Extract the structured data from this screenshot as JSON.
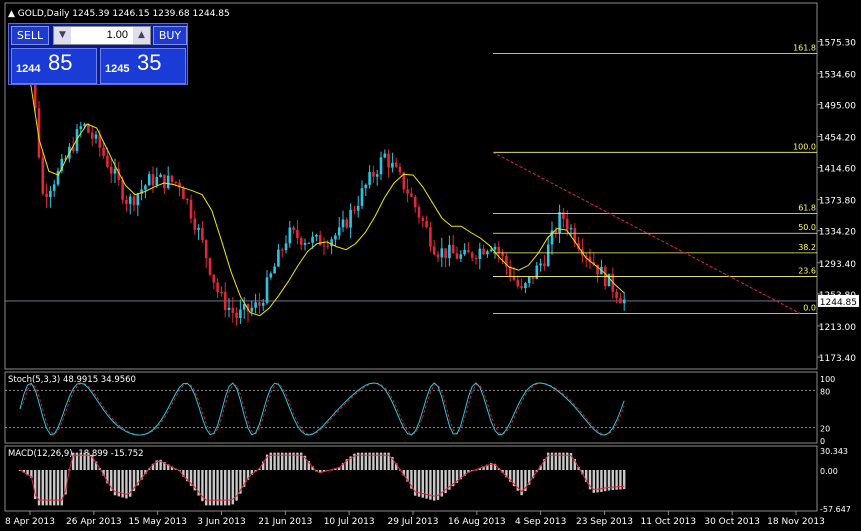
{
  "header": {
    "symbol": "GOLD,Daily",
    "ohlc": "1245.39 1246.15 1239.68 1244.85"
  },
  "trade_panel": {
    "sell_label": "SELL",
    "buy_label": "BUY",
    "lot_value": "1.00",
    "sell_price_small": "1244",
    "sell_price_big": "85",
    "buy_price_small": "1245",
    "buy_price_big": "35"
  },
  "colors": {
    "up": "#2ec4e0",
    "down": "#e0283a",
    "ma": "#f2e600",
    "fib": "#ffff66",
    "trend": "#e0283a",
    "stoch_main": "#2ec4e0",
    "stoch_signal": "#e0283a",
    "macd_hist": "#c8c8c8",
    "macd_signal": "#e0283a",
    "axis_text": "#ffffff"
  },
  "chart_data": {
    "type": "candlestick",
    "price_axis": {
      "ticks": [
        "1575.30",
        "1534.60",
        "1495.00",
        "1454.20",
        "1414.60",
        "1373.80",
        "1334.20",
        "1293.40",
        "1253.80",
        "1213.00",
        "1173.40"
      ],
      "current": "1244.85",
      "range": [
        1162,
        1605
      ]
    },
    "time_axis": [
      "8 Apr 2013",
      "26 Apr 2013",
      "15 May 2013",
      "3 Jun 2013",
      "21 Jun 2013",
      "10 Jul 2013",
      "29 Jul 2013",
      "16 Aug 2013",
      "4 Sep 2013",
      "23 Sep 2013",
      "11 Oct 2013",
      "30 Oct 2013",
      "18 Nov 2013"
    ],
    "fibonacci": {
      "high": 1434,
      "low": 1229,
      "levels": [
        {
          "label": "161.8",
          "value": 1560
        },
        {
          "label": "100.0",
          "value": 1434
        },
        {
          "label": "61.8",
          "value": 1356
        },
        {
          "label": "50.0",
          "value": 1331
        },
        {
          "label": "38.2",
          "value": 1306
        },
        {
          "label": "23.6",
          "value": 1276
        },
        {
          "label": "0.0",
          "value": 1229
        }
      ]
    },
    "trendline": {
      "from": {
        "date": "16 Aug 2013",
        "value": 1434
      },
      "to": {
        "date": "20 Nov 2013",
        "value": 1229
      }
    },
    "ma_points": [
      1543,
      1530,
      1450,
      1410,
      1405,
      1430,
      1452,
      1470,
      1465,
      1440,
      1415,
      1392,
      1380,
      1384,
      1390,
      1395,
      1393,
      1389,
      1385,
      1380,
      1360,
      1322,
      1282,
      1250,
      1230,
      1226,
      1236,
      1252,
      1270,
      1290,
      1308,
      1318,
      1320,
      1314,
      1310,
      1318,
      1332,
      1352,
      1376,
      1395,
      1406,
      1405,
      1390,
      1370,
      1350,
      1340,
      1340,
      1332,
      1325,
      1315,
      1300,
      1288,
      1284,
      1290,
      1305,
      1325,
      1337,
      1335,
      1318,
      1300,
      1290,
      1280,
      1266,
      1255
    ],
    "indicators": [
      {
        "name": "stochastic",
        "label": "Stoch(5,3,3) 48.9915 34.9560",
        "levels": [
          "100",
          "80",
          "20",
          "0"
        ]
      },
      {
        "name": "macd",
        "label": "MACD(12,26,9) -18.899 -15.752",
        "levels": [
          "30.343",
          "0.00",
          "-57.647"
        ]
      }
    ]
  }
}
